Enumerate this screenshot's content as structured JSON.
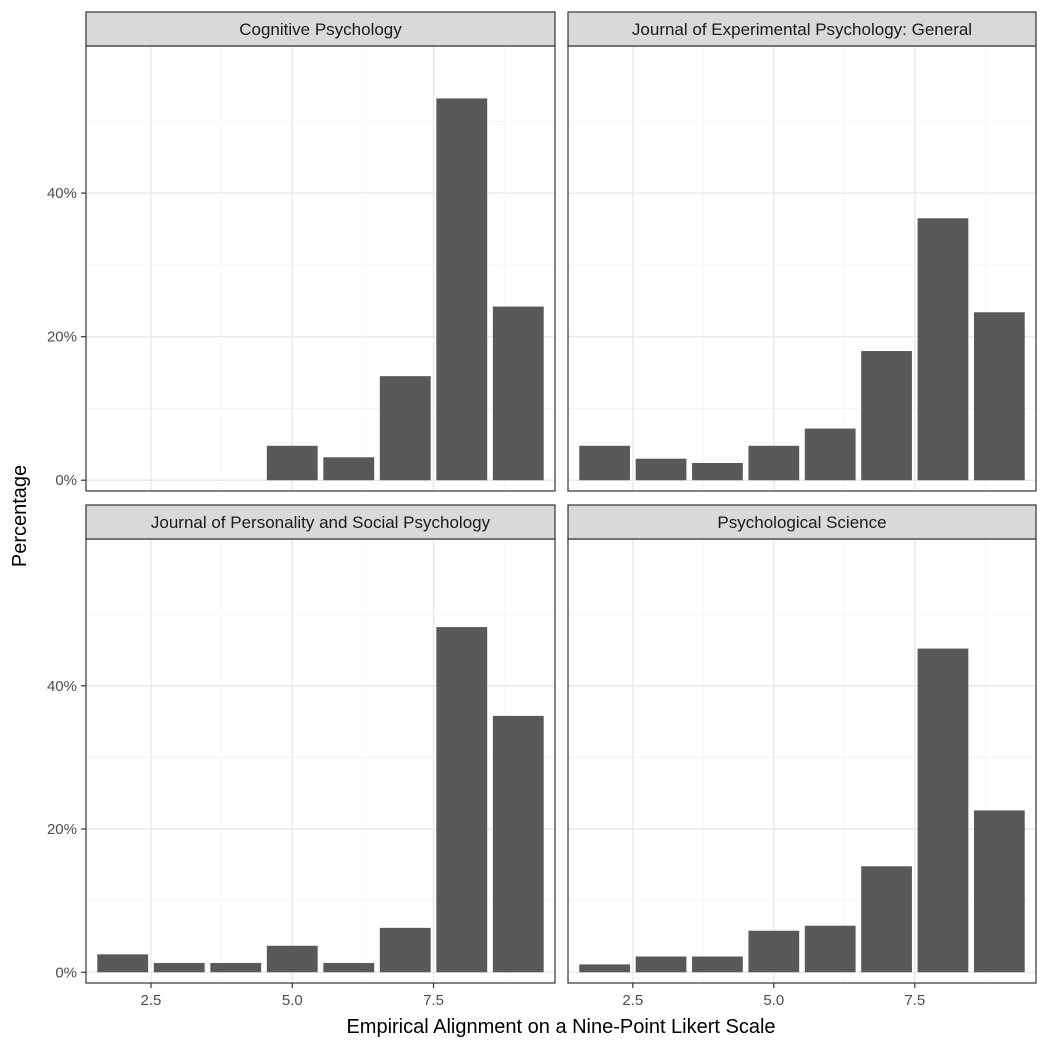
{
  "chart_data": {
    "type": "bar",
    "xlabel": "Empirical Alignment on a Nine-Point Likert Scale",
    "ylabel": "Percentage",
    "x_ticks": [
      2.5,
      5.0,
      7.5
    ],
    "x_tick_labels": [
      "2.5",
      "5.0",
      "7.5"
    ],
    "y_ticks": [
      0,
      20,
      40
    ],
    "y_tick_labels": [
      "0%",
      "20%",
      "40%"
    ],
    "xlim": [
      1.35,
      9.65
    ],
    "ylim": [
      -1.5,
      60.5
    ],
    "grid": true,
    "bar_width": 0.9,
    "colors": {
      "bar": "#595959",
      "panel_border": "#333333",
      "strip_fill": "#d9d9d9",
      "grid_major": "#ebebeb",
      "grid_minor": "#f3f3f3"
    },
    "panels": [
      {
        "title": "Cognitive Psychology",
        "x": [
          5,
          6,
          7,
          8,
          9
        ],
        "values": [
          4.8,
          3.2,
          14.5,
          53.2,
          24.2
        ]
      },
      {
        "title": "Journal of Experimental Psychology: General",
        "x": [
          2,
          3,
          4,
          5,
          6,
          7,
          8,
          9
        ],
        "values": [
          4.8,
          3.0,
          2.4,
          4.8,
          7.2,
          18.0,
          36.5,
          23.4
        ]
      },
      {
        "title": "Journal of Personality and Social Psychology",
        "x": [
          2,
          3,
          4,
          5,
          6,
          7,
          8,
          9
        ],
        "values": [
          2.5,
          1.3,
          1.3,
          3.7,
          1.3,
          6.2,
          48.2,
          35.8
        ]
      },
      {
        "title": "Psychological Science",
        "x": [
          2,
          3,
          4,
          5,
          6,
          7,
          8,
          9
        ],
        "values": [
          1.1,
          2.2,
          2.2,
          5.8,
          6.5,
          14.8,
          45.2,
          22.6
        ]
      }
    ]
  }
}
